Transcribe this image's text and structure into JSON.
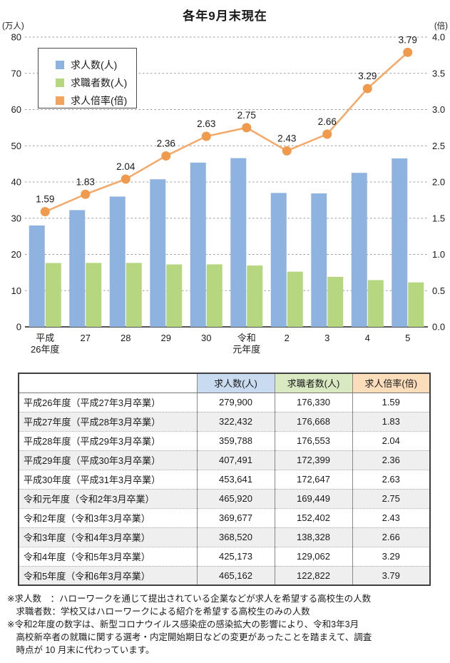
{
  "title": "各年9月末現在",
  "chart": {
    "left_axis_unit": "(万人)",
    "right_axis_unit": "(倍)",
    "colors": {
      "bar_jobs": "#8FB3E1",
      "bar_seekers": "#B6D77F",
      "line_ratio": "#F5A867",
      "marker_ratio": "#F09A4E",
      "grid": "#9b9b9b",
      "axis": "#1a1a1a"
    },
    "legend": [
      {
        "label": "求人数(人)",
        "color": "#8FB3E1"
      },
      {
        "label": "求職者数(人)",
        "color": "#B6D77F"
      },
      {
        "label": "求人倍率(倍)",
        "color": "#F2A45F"
      }
    ]
  },
  "chart_data": {
    "type": "bar",
    "title": "各年9月末現在",
    "categories": [
      "平成\n26年度",
      "27",
      "28",
      "29",
      "30",
      "令和\n元年度",
      "2",
      "3",
      "4",
      "5"
    ],
    "series": [
      {
        "name": "求人数(人)",
        "type": "bar",
        "axis": "left",
        "values": [
          27.99,
          32.24,
          35.98,
          40.75,
          45.36,
          46.59,
          36.97,
          36.85,
          42.52,
          46.52
        ]
      },
      {
        "name": "求職者数(人)",
        "type": "bar",
        "axis": "left",
        "values": [
          17.63,
          17.67,
          17.66,
          17.24,
          17.26,
          16.94,
          15.24,
          13.83,
          12.91,
          12.28
        ]
      },
      {
        "name": "求人倍率(倍)",
        "type": "line",
        "axis": "right",
        "values": [
          1.59,
          1.83,
          2.04,
          2.36,
          2.63,
          2.75,
          2.43,
          2.66,
          3.29,
          3.79
        ]
      }
    ],
    "line_labels": [
      "1.59",
      "1.83",
      "2.04",
      "2.36",
      "2.63",
      "2.75",
      "2.43",
      "2.66",
      "3.29",
      "3.79"
    ],
    "left_ylabel": "(万人)",
    "right_ylabel": "(倍)",
    "left_ylim": [
      0,
      80
    ],
    "right_ylim": [
      0,
      4.0
    ],
    "left_ticks": [
      0,
      10,
      20,
      30,
      40,
      50,
      60,
      70,
      80
    ],
    "right_ticks": [
      "0.0",
      "0.5",
      "1.0",
      "1.5",
      "2.0",
      "2.5",
      "3.0",
      "3.5",
      "4.0"
    ],
    "grid": "dashed-horizontal",
    "legend_position": "upper-left-inside"
  },
  "table": {
    "headers": [
      "",
      "求人数(人)",
      "求職者数(人)",
      "求人倍率(倍)"
    ],
    "header_colors": [
      "#ffffff",
      "#C9DBF0",
      "#D9EAC2",
      "#FBDDBB"
    ],
    "rows": [
      {
        "label": "平成26年度（平成27年3月卒業）",
        "jobs": "279,900",
        "seekers": "176,330",
        "ratio": "1.59"
      },
      {
        "label": "平成27年度（平成28年3月卒業）",
        "jobs": "322,432",
        "seekers": "176,668",
        "ratio": "1.83"
      },
      {
        "label": "平成28年度（平成29年3月卒業）",
        "jobs": "359,788",
        "seekers": "176,553",
        "ratio": "2.04"
      },
      {
        "label": "平成29年度（平成30年3月卒業）",
        "jobs": "407,491",
        "seekers": "172,399",
        "ratio": "2.36"
      },
      {
        "label": "平成30年度（平成31年3月卒業）",
        "jobs": "453,641",
        "seekers": "172,647",
        "ratio": "2.63"
      },
      {
        "label": "令和元年度（令和2年3月卒業）",
        "jobs": "465,920",
        "seekers": "169,449",
        "ratio": "2.75"
      },
      {
        "label": "令和2年度（令和3年3月卒業）",
        "jobs": "369,677",
        "seekers": "152,402",
        "ratio": "2.43"
      },
      {
        "label": "令和3年度（令和4年3月卒業）",
        "jobs": "368,520",
        "seekers": "138,328",
        "ratio": "2.66"
      },
      {
        "label": "令和4年度（令和5年3月卒業）",
        "jobs": "425,173",
        "seekers": "129,062",
        "ratio": "3.29"
      },
      {
        "label": "令和5年度（令和6年3月卒業）",
        "jobs": "465,162",
        "seekers": "122,822",
        "ratio": "3.79"
      }
    ]
  },
  "footnotes": [
    {
      "text": "※求人数　：ハローワークを通じて提出されている企業などが求人を希望する高校生の人数",
      "indent": false
    },
    {
      "text": "求職者数：学校又はハローワークによる紹介を希望する高校生のみの人数",
      "indent": true
    },
    {
      "text": "※令和2年度の数字は、新型コロナウイルス感染症の感染拡大の影響により、令和3年3月",
      "indent": false
    },
    {
      "text": "高校新卒者の就職に関する選考・内定開始期日などの変更があったことを踏まえて、調査",
      "indent": true
    },
    {
      "text": "時点が 10 月末に代わっています。",
      "indent": true
    }
  ]
}
